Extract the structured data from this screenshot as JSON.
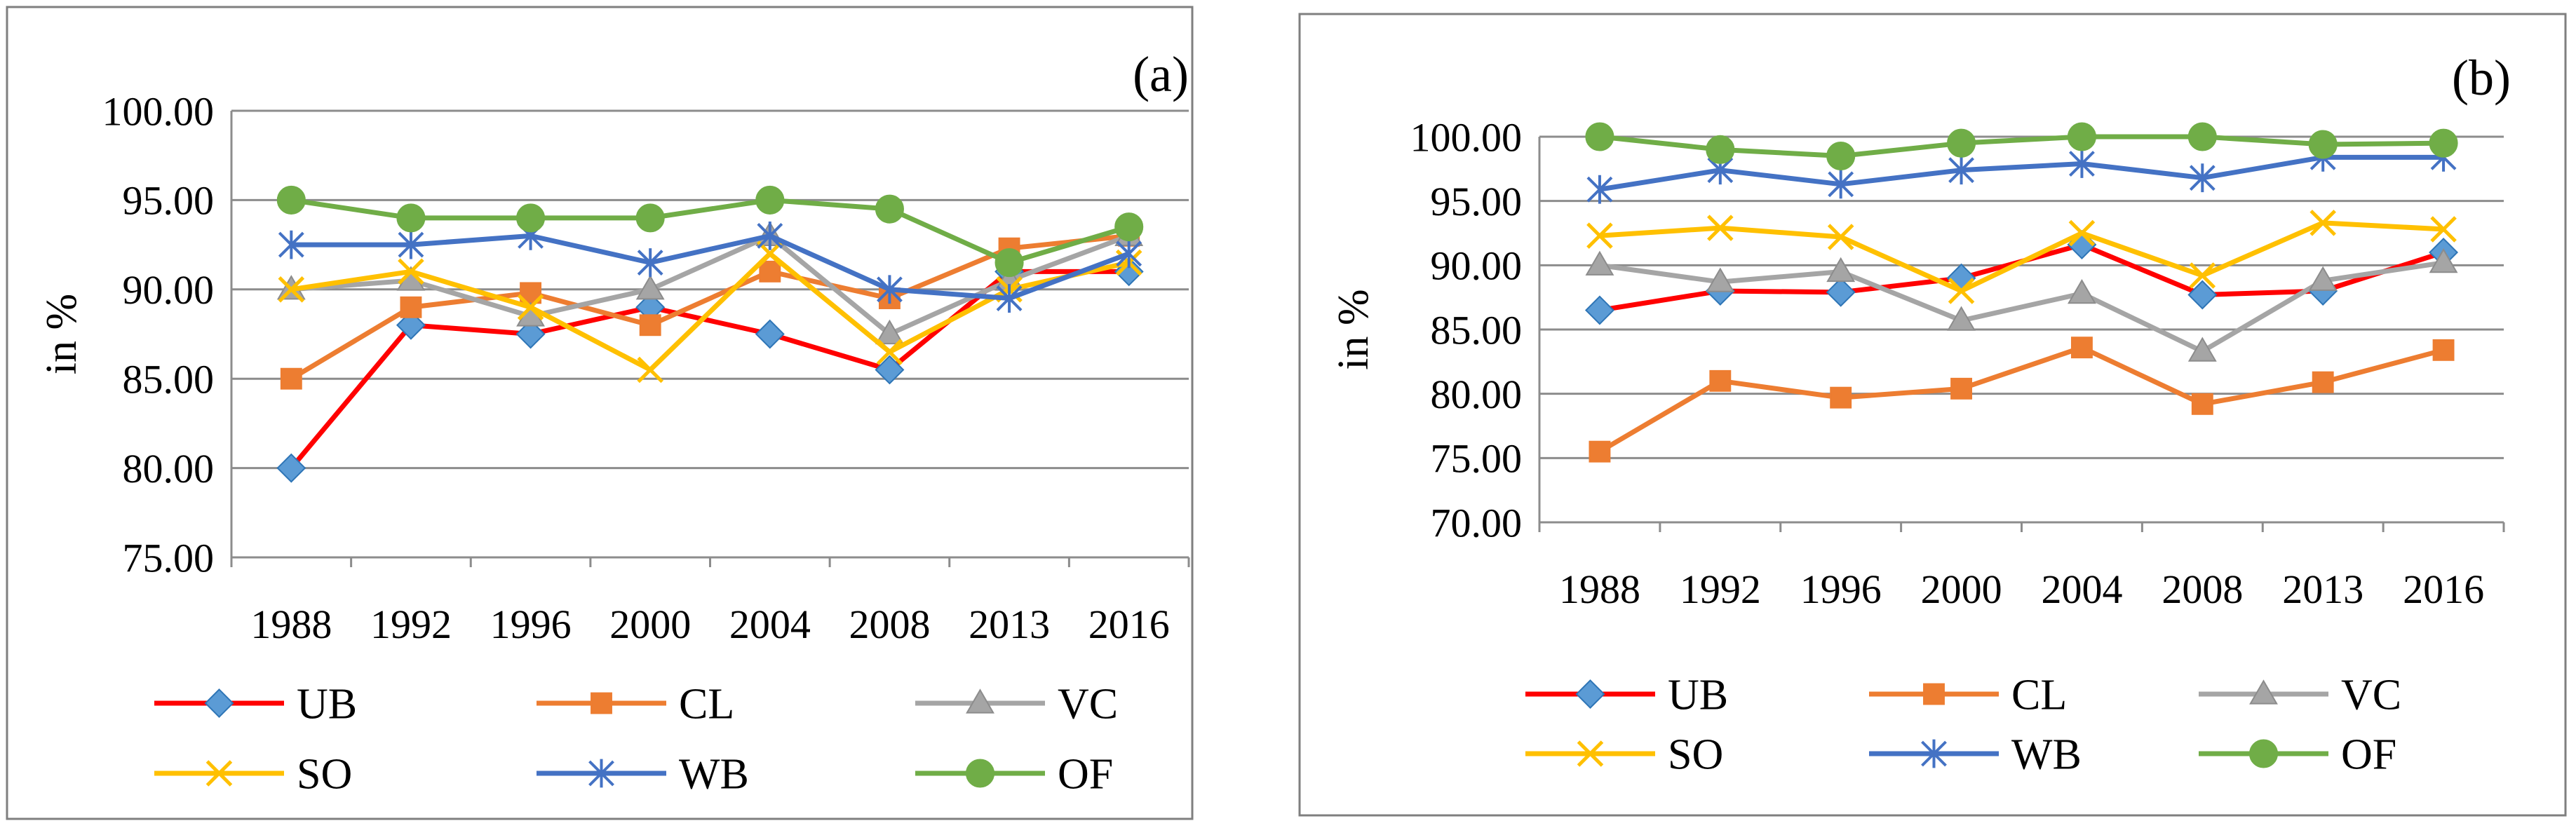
{
  "chart_data": [
    {
      "type": "line",
      "panel_label": "(a)",
      "ylabel": "in %",
      "categories": [
        "1988",
        "1992",
        "1996",
        "2000",
        "2004",
        "2008",
        "2013",
        "2016"
      ],
      "ylim": [
        75,
        100
      ],
      "ystep": 5,
      "yticks": [
        "75.00",
        "80.00",
        "85.00",
        "90.00",
        "95.00",
        "100.00"
      ],
      "grid": true,
      "legend_position": "bottom",
      "series": [
        {
          "name": "UB",
          "color": "#ff0000",
          "marker": "diamond",
          "values": [
            80.0,
            88.0,
            87.5,
            89.0,
            87.5,
            85.5,
            91.0,
            91.0
          ]
        },
        {
          "name": "CL",
          "color": "#ed7d31",
          "marker": "square",
          "values": [
            85.0,
            89.0,
            89.8,
            88.0,
            91.0,
            89.5,
            92.3,
            93.0
          ]
        },
        {
          "name": "VC",
          "color": "#a5a5a5",
          "marker": "triangle",
          "values": [
            90.0,
            90.5,
            88.5,
            90.0,
            93.0,
            87.5,
            90.5,
            93.0
          ]
        },
        {
          "name": "SO",
          "color": "#ffc000",
          "marker": "x",
          "values": [
            90.0,
            91.0,
            89.0,
            85.5,
            92.0,
            86.5,
            90.0,
            91.5
          ]
        },
        {
          "name": "WB",
          "color": "#4472c4",
          "marker": "star",
          "values": [
            92.5,
            92.5,
            93.0,
            91.5,
            93.0,
            90.0,
            89.5,
            92.0
          ]
        },
        {
          "name": "OF",
          "color": "#70ad47",
          "marker": "circle",
          "values": [
            95.0,
            94.0,
            94.0,
            94.0,
            95.0,
            94.5,
            91.5,
            93.5
          ]
        }
      ]
    },
    {
      "type": "line",
      "panel_label": "(b)",
      "ylabel": "in %",
      "categories": [
        "1988",
        "1992",
        "1996",
        "2000",
        "2004",
        "2008",
        "2013",
        "2016"
      ],
      "ylim": [
        70,
        100
      ],
      "ystep": 5,
      "yticks": [
        "70.00",
        "75.00",
        "80.00",
        "85.00",
        "90.00",
        "95.00",
        "100.00"
      ],
      "grid": true,
      "legend_position": "bottom",
      "series": [
        {
          "name": "UB",
          "color": "#ff0000",
          "marker": "diamond",
          "values": [
            86.5,
            88.0,
            87.9,
            89.0,
            91.6,
            87.7,
            88.0,
            91.0
          ]
        },
        {
          "name": "CL",
          "color": "#ed7d31",
          "marker": "square",
          "values": [
            75.5,
            81.0,
            79.7,
            80.4,
            83.6,
            79.2,
            80.9,
            83.4
          ]
        },
        {
          "name": "VC",
          "color": "#a5a5a5",
          "marker": "triangle",
          "values": [
            90.0,
            88.7,
            89.5,
            85.7,
            87.8,
            83.3,
            88.8,
            90.2
          ]
        },
        {
          "name": "SO",
          "color": "#ffc000",
          "marker": "x",
          "values": [
            92.3,
            92.9,
            92.2,
            88.0,
            92.5,
            89.2,
            93.3,
            92.8
          ]
        },
        {
          "name": "WB",
          "color": "#4472c4",
          "marker": "star",
          "values": [
            95.9,
            97.4,
            96.3,
            97.4,
            97.9,
            96.8,
            98.4,
            98.4
          ]
        },
        {
          "name": "OF",
          "color": "#70ad47",
          "marker": "circle",
          "values": [
            100.0,
            99.0,
            98.5,
            99.5,
            100.0,
            100.0,
            99.4,
            99.5
          ]
        }
      ]
    }
  ]
}
